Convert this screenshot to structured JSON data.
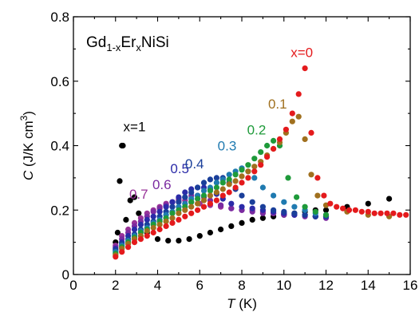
{
  "chart_data": {
    "type": "scatter",
    "title_parts": {
      "element1": "Gd",
      "sub1": "1-x",
      "element2": "Er",
      "sub2": "x",
      "element3": "NiSi"
    },
    "xlabel": {
      "var": "T",
      "unit": " (K)"
    },
    "ylabel": {
      "var": "C",
      "unit_main": " (J/K cm",
      "unit_sup": "3",
      "unit_close": ")"
    },
    "xlim": [
      0,
      16
    ],
    "ylim": [
      0,
      0.8
    ],
    "xticks": [
      0,
      2,
      4,
      6,
      8,
      10,
      12,
      14,
      16
    ],
    "yticks": [
      0,
      0.2,
      0.4,
      0.6,
      0.8
    ],
    "xtick_labels": [
      "0",
      "2",
      "4",
      "6",
      "8",
      "10",
      "12",
      "14",
      "16"
    ],
    "ytick_labels": [
      "0",
      "0.2",
      "0.4",
      "0.6",
      "0.8"
    ],
    "series": [
      {
        "name": "x=1",
        "color": "#000000",
        "x": [
          2.0,
          2.1,
          2.2,
          2.3,
          2.35,
          2.5,
          2.7,
          2.9,
          3.1,
          3.5,
          4.0,
          4.5,
          5.0,
          5.5,
          6.0,
          6.5,
          7.0,
          7.5,
          8.0,
          8.5,
          9.0,
          9.5,
          10.0,
          10.5,
          11.0,
          11.5,
          12.0,
          13.0,
          14.0,
          15.0
        ],
        "y": [
          0.1,
          0.13,
          0.29,
          0.4,
          0.4,
          0.17,
          0.23,
          0.24,
          0.19,
          0.13,
          0.11,
          0.105,
          0.105,
          0.11,
          0.12,
          0.13,
          0.14,
          0.15,
          0.16,
          0.17,
          0.175,
          0.18,
          0.185,
          0.19,
          0.195,
          0.2,
          0.2,
          0.21,
          0.22,
          0.235
        ]
      },
      {
        "name": "0.7",
        "color": "#993399",
        "x": [
          2.0,
          2.3,
          2.6,
          2.9,
          3.2,
          3.5,
          3.8,
          4.1,
          4.4,
          4.7,
          5.0,
          5.3,
          5.6,
          6.0,
          6.5,
          7.0,
          7.5,
          8.0,
          8.5,
          9.0,
          9.5,
          10.0,
          10.5,
          11.0,
          11.5,
          12.0
        ],
        "y": [
          0.09,
          0.12,
          0.14,
          0.16,
          0.175,
          0.19,
          0.2,
          0.21,
          0.22,
          0.225,
          0.23,
          0.23,
          0.225,
          0.22,
          0.215,
          0.21,
          0.205,
          0.2,
          0.2,
          0.195,
          0.19,
          0.19,
          0.185,
          0.185,
          0.18,
          0.18
        ]
      },
      {
        "name": "0.6",
        "color": "#7a2aa0",
        "x": [
          2.0,
          2.3,
          2.6,
          2.9,
          3.2,
          3.5,
          3.8,
          4.1,
          4.4,
          4.7,
          5.0,
          5.3,
          5.6,
          5.9,
          6.2,
          6.5,
          7.0,
          7.5,
          8.0,
          8.5,
          9.0,
          9.5,
          10.0,
          10.5,
          11.0,
          11.5,
          12.0
        ],
        "y": [
          0.085,
          0.11,
          0.13,
          0.15,
          0.165,
          0.18,
          0.195,
          0.205,
          0.215,
          0.225,
          0.235,
          0.24,
          0.245,
          0.245,
          0.24,
          0.23,
          0.215,
          0.205,
          0.2,
          0.195,
          0.19,
          0.19,
          0.185,
          0.185,
          0.18,
          0.18,
          0.175
        ]
      },
      {
        "name": "0.5",
        "color": "#2b2ba8",
        "x": [
          2.0,
          2.3,
          2.6,
          2.9,
          3.2,
          3.5,
          3.8,
          4.1,
          4.4,
          4.7,
          5.0,
          5.3,
          5.6,
          5.9,
          6.2,
          6.5,
          6.8,
          7.1,
          7.5,
          8.0,
          8.5,
          9.0,
          9.5,
          10.0,
          10.5,
          11.0,
          11.5,
          12.0
        ],
        "y": [
          0.08,
          0.1,
          0.12,
          0.14,
          0.155,
          0.17,
          0.18,
          0.195,
          0.21,
          0.225,
          0.24,
          0.255,
          0.265,
          0.27,
          0.27,
          0.265,
          0.25,
          0.235,
          0.22,
          0.21,
          0.205,
          0.2,
          0.195,
          0.19,
          0.185,
          0.185,
          0.18,
          0.18
        ]
      },
      {
        "name": "0.4",
        "color": "#1a3f9a",
        "x": [
          2.0,
          2.3,
          2.6,
          2.9,
          3.2,
          3.5,
          3.8,
          4.1,
          4.4,
          4.7,
          5.0,
          5.3,
          5.6,
          5.9,
          6.2,
          6.5,
          6.8,
          7.1,
          7.4,
          7.7,
          8.0,
          8.5,
          9.0,
          9.5,
          10.0,
          10.5,
          11.0,
          11.5,
          12.0
        ],
        "y": [
          0.075,
          0.095,
          0.11,
          0.125,
          0.14,
          0.155,
          0.165,
          0.18,
          0.195,
          0.21,
          0.225,
          0.24,
          0.255,
          0.27,
          0.285,
          0.295,
          0.3,
          0.3,
          0.285,
          0.265,
          0.245,
          0.225,
          0.21,
          0.2,
          0.195,
          0.19,
          0.185,
          0.18,
          0.18
        ]
      },
      {
        "name": "0.3",
        "color": "#1f7ab0",
        "x": [
          2.0,
          2.3,
          2.6,
          2.9,
          3.2,
          3.5,
          3.8,
          4.1,
          4.4,
          4.7,
          5.0,
          5.3,
          5.6,
          5.9,
          6.2,
          6.5,
          6.8,
          7.1,
          7.4,
          7.7,
          8.0,
          8.3,
          8.6,
          9.0,
          9.5,
          10.0,
          10.5,
          11.0,
          11.5,
          12.0
        ],
        "y": [
          0.07,
          0.09,
          0.105,
          0.12,
          0.135,
          0.145,
          0.16,
          0.17,
          0.185,
          0.195,
          0.21,
          0.22,
          0.235,
          0.245,
          0.26,
          0.27,
          0.285,
          0.295,
          0.31,
          0.32,
          0.33,
          0.32,
          0.3,
          0.27,
          0.245,
          0.225,
          0.21,
          0.2,
          0.19,
          0.185
        ]
      },
      {
        "name": "0.2",
        "color": "#1e9a3a",
        "x": [
          2.0,
          2.3,
          2.6,
          2.9,
          3.2,
          3.5,
          3.8,
          4.1,
          4.4,
          4.7,
          5.0,
          5.3,
          5.6,
          5.9,
          6.2,
          6.5,
          6.8,
          7.1,
          7.4,
          7.7,
          8.0,
          8.3,
          8.6,
          8.9,
          9.2,
          9.5,
          9.8,
          10.2,
          10.6,
          11.0,
          11.5,
          12.0
        ],
        "y": [
          0.065,
          0.085,
          0.1,
          0.115,
          0.13,
          0.14,
          0.155,
          0.165,
          0.175,
          0.19,
          0.2,
          0.21,
          0.225,
          0.235,
          0.245,
          0.26,
          0.27,
          0.285,
          0.295,
          0.31,
          0.325,
          0.34,
          0.36,
          0.38,
          0.4,
          0.415,
          0.4,
          0.3,
          0.24,
          0.21,
          0.195,
          0.185
        ]
      },
      {
        "name": "0.1",
        "color": "#a0701e",
        "x": [
          2.0,
          2.3,
          2.6,
          2.9,
          3.2,
          3.5,
          3.8,
          4.1,
          4.4,
          4.7,
          5.0,
          5.3,
          5.6,
          5.9,
          6.2,
          6.5,
          6.8,
          7.1,
          7.4,
          7.7,
          8.0,
          8.3,
          8.6,
          8.9,
          9.2,
          9.5,
          9.8,
          10.1,
          10.4,
          10.7,
          11.0,
          11.3,
          11.6,
          12.0,
          13.0,
          14.0,
          15.0
        ],
        "y": [
          0.06,
          0.08,
          0.095,
          0.11,
          0.12,
          0.135,
          0.145,
          0.155,
          0.165,
          0.175,
          0.19,
          0.2,
          0.21,
          0.22,
          0.23,
          0.245,
          0.255,
          0.265,
          0.28,
          0.29,
          0.305,
          0.32,
          0.335,
          0.35,
          0.37,
          0.39,
          0.41,
          0.44,
          0.475,
          0.49,
          0.42,
          0.31,
          0.245,
          0.215,
          0.195,
          0.185,
          0.18
        ]
      },
      {
        "name": "x=0",
        "color": "#e41a1c",
        "x": [
          2.0,
          2.3,
          2.6,
          2.9,
          3.2,
          3.5,
          3.8,
          4.1,
          4.4,
          4.7,
          5.0,
          5.3,
          5.6,
          5.9,
          6.2,
          6.5,
          6.8,
          7.1,
          7.4,
          7.7,
          8.0,
          8.3,
          8.6,
          8.9,
          9.2,
          9.5,
          9.8,
          10.1,
          10.4,
          10.7,
          11.0,
          11.3,
          11.6,
          11.9,
          12.2,
          12.5,
          12.8,
          13.1,
          13.4,
          13.7,
          14.0,
          14.3,
          14.6,
          14.9,
          15.2,
          15.5,
          15.8
        ],
        "y": [
          0.055,
          0.07,
          0.085,
          0.1,
          0.11,
          0.12,
          0.13,
          0.14,
          0.15,
          0.16,
          0.17,
          0.18,
          0.19,
          0.2,
          0.21,
          0.22,
          0.23,
          0.245,
          0.255,
          0.27,
          0.285,
          0.3,
          0.32,
          0.34,
          0.365,
          0.39,
          0.42,
          0.45,
          0.5,
          0.56,
          0.64,
          0.44,
          0.3,
          0.245,
          0.22,
          0.21,
          0.205,
          0.2,
          0.2,
          0.195,
          0.195,
          0.19,
          0.19,
          0.19,
          0.19,
          0.185,
          0.185
        ]
      }
    ],
    "series_labels": [
      {
        "text": "x=1",
        "color": "#000000",
        "at": [
          2.9,
          0.445
        ]
      },
      {
        "text": "0.7",
        "color": "#993399",
        "at": [
          3.1,
          0.235
        ]
      },
      {
        "text": "0.6",
        "color": "#7a2aa0",
        "at": [
          4.2,
          0.265
        ]
      },
      {
        "text": "0.5",
        "color": "#2b2ba8",
        "at": [
          5.05,
          0.315
        ]
      },
      {
        "text": "0.4",
        "color": "#1a3f9a",
        "at": [
          5.75,
          0.33
        ]
      },
      {
        "text": "0.3",
        "color": "#1f7ab0",
        "at": [
          7.3,
          0.385
        ]
      },
      {
        "text": "0.2",
        "color": "#1e9a3a",
        "at": [
          8.7,
          0.435
        ]
      },
      {
        "text": "0.1",
        "color": "#a0701e",
        "at": [
          9.7,
          0.515
        ]
      },
      {
        "text": "x=0",
        "color": "#e41a1c",
        "at": [
          10.85,
          0.675
        ]
      }
    ]
  }
}
